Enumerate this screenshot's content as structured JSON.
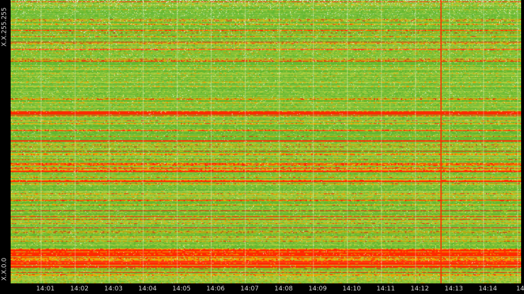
{
  "chart_data": {
    "type": "heatmap",
    "title": "",
    "y_axis": {
      "top_label": "X.X.255.255",
      "bottom_label": "X.X.0.0"
    },
    "x_axis": {
      "tick_labels": [
        "14:01",
        "14:02",
        "14:03",
        "14:04",
        "14:05",
        "14:06",
        "14:07",
        "14:08",
        "14:09",
        "14:10",
        "14:11",
        "14:12",
        "14:13",
        "14:14",
        "14"
      ]
    },
    "grid": true,
    "color_scale": [
      "#64b830",
      "#8ec63f",
      "#b5cf3a",
      "#f0a000",
      "#ff2a00"
    ],
    "background_color": "#000000",
    "grid_color": "#ffffff"
  }
}
